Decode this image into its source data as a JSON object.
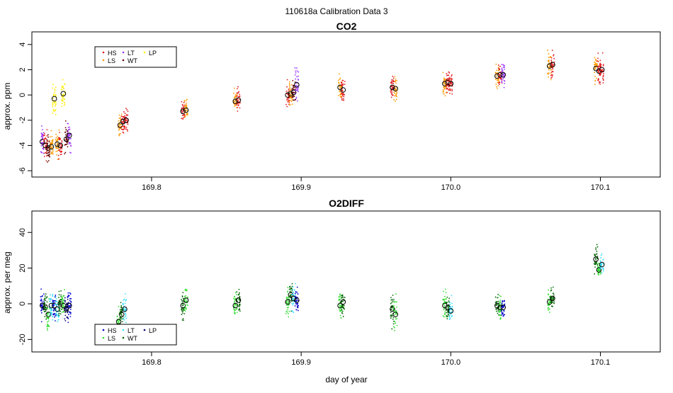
{
  "figure": {
    "title": "110618a   Calibration Data 3",
    "xlabel": "day of year"
  },
  "chart_data": [
    {
      "type": "scatter",
      "title": "CO2",
      "xlabel": "",
      "ylabel": "approx. ppm",
      "xlim": [
        169.72,
        170.14
      ],
      "ylim": [
        -6.5,
        5.0
      ],
      "x_ticks": [
        169.8,
        169.9,
        170.0,
        170.1
      ],
      "x_tick_labels": [
        "169.8",
        "169.9",
        "170.0",
        "170.1"
      ],
      "y_ticks": [
        -6,
        -4,
        -2,
        0,
        2,
        4
      ],
      "y_tick_labels": [
        "-6",
        "-4",
        "-2",
        "0",
        "2",
        "4"
      ],
      "legend": {
        "position": "top-left",
        "entries": [
          "HS",
          "LS",
          "LT",
          "WT",
          "LP"
        ]
      },
      "series_colors": {
        "HS": "#e31a1c",
        "LS": "#ff9900",
        "LT": "#9933ff",
        "WT": "#660000",
        "LP": "#ffee00"
      },
      "clusters": [
        {
          "x": 169.727,
          "series": "LT",
          "mean": -3.7,
          "spread": 0.9
        },
        {
          "x": 169.729,
          "series": "HS",
          "mean": -4.0,
          "spread": 0.9
        },
        {
          "x": 169.731,
          "series": "WT",
          "mean": -4.2,
          "spread": 0.8
        },
        {
          "x": 169.733,
          "series": "LS",
          "mean": -4.1,
          "spread": 0.9
        },
        {
          "x": 169.735,
          "series": "LP",
          "mean": -0.3,
          "spread": 0.9
        },
        {
          "x": 169.737,
          "series": "LS",
          "mean": -3.9,
          "spread": 0.9
        },
        {
          "x": 169.739,
          "series": "HS",
          "mean": -4.0,
          "spread": 0.8
        },
        {
          "x": 169.741,
          "series": "LP",
          "mean": 0.1,
          "spread": 1.1
        },
        {
          "x": 169.743,
          "series": "WT",
          "mean": -3.5,
          "spread": 0.9
        },
        {
          "x": 169.745,
          "series": "LT",
          "mean": -3.2,
          "spread": 0.9
        },
        {
          "x": 169.779,
          "series": "LS",
          "mean": -2.4,
          "spread": 0.8
        },
        {
          "x": 169.781,
          "series": "HS",
          "mean": -2.1,
          "spread": 0.7
        },
        {
          "x": 169.783,
          "series": "HS",
          "mean": -2.0,
          "spread": 0.7
        },
        {
          "x": 169.821,
          "series": "HS",
          "mean": -1.3,
          "spread": 0.6
        },
        {
          "x": 169.823,
          "series": "LS",
          "mean": -1.2,
          "spread": 0.6
        },
        {
          "x": 169.856,
          "series": "LS",
          "mean": -0.5,
          "spread": 0.7
        },
        {
          "x": 169.858,
          "series": "HS",
          "mean": -0.4,
          "spread": 0.7
        },
        {
          "x": 169.891,
          "series": "HS",
          "mean": 0.0,
          "spread": 0.8
        },
        {
          "x": 169.893,
          "series": "LS",
          "mean": 0.1,
          "spread": 0.8
        },
        {
          "x": 169.895,
          "series": "WT",
          "mean": 0.2,
          "spread": 0.7
        },
        {
          "x": 169.897,
          "series": "LT",
          "mean": 0.8,
          "spread": 0.9
        },
        {
          "x": 169.926,
          "series": "LS",
          "mean": 0.6,
          "spread": 0.8
        },
        {
          "x": 169.928,
          "series": "HS",
          "mean": 0.4,
          "spread": 0.7
        },
        {
          "x": 169.961,
          "series": "HS",
          "mean": 0.6,
          "spread": 0.7
        },
        {
          "x": 169.963,
          "series": "LS",
          "mean": 0.5,
          "spread": 0.7
        },
        {
          "x": 169.996,
          "series": "LS",
          "mean": 0.9,
          "spread": 0.8
        },
        {
          "x": 169.998,
          "series": "HS",
          "mean": 1.0,
          "spread": 0.8
        },
        {
          "x": 170.0,
          "series": "HS",
          "mean": 0.9,
          "spread": 0.8
        },
        {
          "x": 170.031,
          "series": "LS",
          "mean": 1.5,
          "spread": 0.8
        },
        {
          "x": 170.033,
          "series": "HS",
          "mean": 1.6,
          "spread": 0.8
        },
        {
          "x": 170.035,
          "series": "LT",
          "mean": 1.6,
          "spread": 0.8
        },
        {
          "x": 170.066,
          "series": "LS",
          "mean": 2.3,
          "spread": 0.9
        },
        {
          "x": 170.068,
          "series": "HS",
          "mean": 2.4,
          "spread": 0.9
        },
        {
          "x": 170.097,
          "series": "LS",
          "mean": 2.1,
          "spread": 0.8
        },
        {
          "x": 170.099,
          "series": "HS",
          "mean": 1.9,
          "spread": 0.8
        },
        {
          "x": 170.101,
          "series": "HS",
          "mean": 2.0,
          "spread": 0.8
        }
      ]
    },
    {
      "type": "scatter",
      "title": "O2DIFF",
      "xlabel": "day of year",
      "ylabel": "approx. per meg",
      "xlim": [
        169.72,
        170.14
      ],
      "ylim": [
        -27,
        52
      ],
      "x_ticks": [
        169.8,
        169.9,
        170.0,
        170.1
      ],
      "x_tick_labels": [
        "169.8",
        "169.9",
        "170.0",
        "170.1"
      ],
      "y_ticks": [
        -20,
        0,
        20,
        40
      ],
      "y_tick_labels": [
        "-20",
        "0",
        "20",
        "40"
      ],
      "legend": {
        "position": "bottom-left",
        "entries": [
          "HS",
          "LS",
          "LT",
          "WT",
          "LP"
        ]
      },
      "series_colors": {
        "HS": "#0000cc",
        "LS": "#33dd33",
        "LT": "#33ddff",
        "WT": "#006600",
        "LP": "#000066"
      },
      "clusters": [
        {
          "x": 169.727,
          "series": "HS",
          "mean": -1,
          "spread": 6
        },
        {
          "x": 169.729,
          "series": "WT",
          "mean": -2,
          "spread": 6
        },
        {
          "x": 169.731,
          "series": "LS",
          "mean": -6,
          "spread": 6
        },
        {
          "x": 169.733,
          "series": "LT",
          "mean": -1,
          "spread": 6
        },
        {
          "x": 169.735,
          "series": "HS",
          "mean": -1,
          "spread": 6
        },
        {
          "x": 169.737,
          "series": "LT",
          "mean": -3,
          "spread": 6
        },
        {
          "x": 169.739,
          "series": "WT",
          "mean": 0,
          "spread": 6
        },
        {
          "x": 169.741,
          "series": "LS",
          "mean": -1,
          "spread": 6
        },
        {
          "x": 169.743,
          "series": "LP",
          "mean": -3,
          "spread": 6
        },
        {
          "x": 169.745,
          "series": "HS",
          "mean": -1,
          "spread": 6
        },
        {
          "x": 169.778,
          "series": "LS",
          "mean": -10,
          "spread": 5
        },
        {
          "x": 169.78,
          "series": "WT",
          "mean": -6,
          "spread": 5
        },
        {
          "x": 169.782,
          "series": "LT",
          "mean": -3,
          "spread": 5
        },
        {
          "x": 169.821,
          "series": "WT",
          "mean": -1,
          "spread": 6
        },
        {
          "x": 169.823,
          "series": "LS",
          "mean": 2,
          "spread": 6
        },
        {
          "x": 169.856,
          "series": "LS",
          "mean": -1,
          "spread": 6
        },
        {
          "x": 169.858,
          "series": "WT",
          "mean": 2,
          "spread": 6
        },
        {
          "x": 169.891,
          "series": "LS",
          "mean": 1,
          "spread": 6
        },
        {
          "x": 169.893,
          "series": "WT",
          "mean": 5,
          "spread": 6
        },
        {
          "x": 169.895,
          "series": "LT",
          "mean": 3,
          "spread": 6
        },
        {
          "x": 169.897,
          "series": "HS",
          "mean": 2,
          "spread": 6
        },
        {
          "x": 169.926,
          "series": "LS",
          "mean": -1,
          "spread": 6
        },
        {
          "x": 169.928,
          "series": "WT",
          "mean": 1,
          "spread": 6
        },
        {
          "x": 169.961,
          "series": "WT",
          "mean": -3,
          "spread": 7
        },
        {
          "x": 169.963,
          "series": "LS",
          "mean": -6,
          "spread": 7
        },
        {
          "x": 169.996,
          "series": "LS",
          "mean": -1,
          "spread": 6
        },
        {
          "x": 169.998,
          "series": "WT",
          "mean": -2,
          "spread": 5
        },
        {
          "x": 170.0,
          "series": "LT",
          "mean": -4,
          "spread": 5
        },
        {
          "x": 170.031,
          "series": "WT",
          "mean": -1,
          "spread": 5
        },
        {
          "x": 170.033,
          "series": "LS",
          "mean": -2,
          "spread": 5
        },
        {
          "x": 170.035,
          "series": "HS",
          "mean": -2,
          "spread": 5
        },
        {
          "x": 170.066,
          "series": "LS",
          "mean": 1,
          "spread": 5
        },
        {
          "x": 170.068,
          "series": "WT",
          "mean": 3,
          "spread": 5
        },
        {
          "x": 170.097,
          "series": "WT",
          "mean": 25,
          "spread": 6
        },
        {
          "x": 170.099,
          "series": "LS",
          "mean": 19,
          "spread": 4
        },
        {
          "x": 170.101,
          "series": "LT",
          "mean": 22,
          "spread": 4
        }
      ]
    }
  ]
}
